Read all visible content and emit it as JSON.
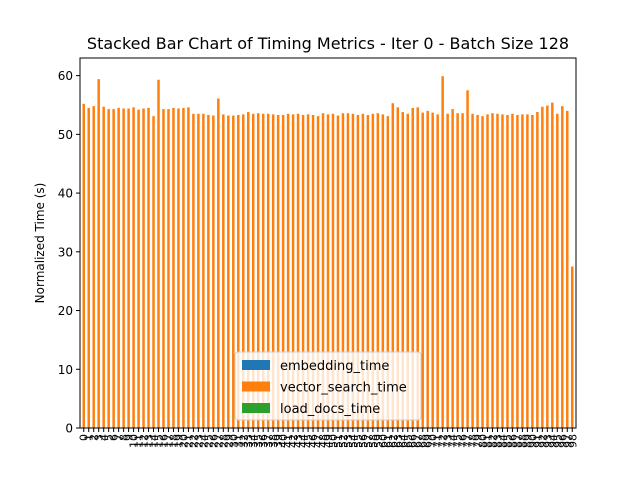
{
  "chart_data": {
    "type": "bar",
    "stacked": true,
    "title": "Stacked Bar Chart of Timing Metrics - Iter 0 - Batch Size 128",
    "xlabel": "",
    "ylabel": "Normalized Time (s)",
    "ylim": [
      0,
      63
    ],
    "yticks": [
      0,
      10,
      20,
      30,
      40,
      50,
      60
    ],
    "grid": false,
    "legend_position": "lower center",
    "categories": [
      "0",
      "1",
      "2",
      "3",
      "4",
      "5",
      "6",
      "7",
      "8",
      "9",
      "10",
      "11",
      "12",
      "13",
      "14",
      "15",
      "16",
      "17",
      "18",
      "19",
      "20",
      "21",
      "22",
      "23",
      "24",
      "25",
      "26",
      "27",
      "28",
      "29",
      "30",
      "31",
      "32",
      "33",
      "34",
      "35",
      "36",
      "37",
      "38",
      "39",
      "40",
      "41",
      "42",
      "43",
      "44",
      "45",
      "46",
      "47",
      "48",
      "49",
      "50",
      "51",
      "52",
      "53",
      "54",
      "55",
      "56",
      "57",
      "58",
      "59",
      "60",
      "61",
      "62",
      "63",
      "64",
      "65",
      "66",
      "67",
      "68",
      "69",
      "70",
      "71",
      "72",
      "73",
      "74",
      "75",
      "76",
      "77",
      "78",
      "79",
      "80",
      "81",
      "82",
      "83",
      "84",
      "85",
      "86",
      "87",
      "88",
      "89",
      "90",
      "91",
      "92",
      "93",
      "94",
      "95",
      "96",
      "97",
      "98"
    ],
    "series": [
      {
        "name": "embedding_time",
        "color": "#1f77b4",
        "values": [
          0,
          0,
          0,
          0,
          0,
          0,
          0,
          0,
          0,
          0,
          0,
          0,
          0,
          0,
          0,
          0,
          0,
          0,
          0,
          0,
          0,
          0,
          0,
          0,
          0,
          0,
          0,
          0,
          0,
          0,
          0,
          0,
          0,
          0,
          0,
          0,
          0,
          0,
          0,
          0,
          0,
          0,
          0,
          0,
          0,
          0,
          0,
          0,
          0,
          0,
          0,
          0,
          0,
          0,
          0,
          0,
          0,
          0,
          0,
          0,
          0,
          0,
          0,
          0,
          0,
          0,
          0,
          0,
          0,
          0,
          0,
          0,
          0,
          0,
          0,
          0,
          0,
          0,
          0,
          0,
          0,
          0,
          0,
          0,
          0,
          0,
          0,
          0,
          0,
          0,
          0,
          0,
          0,
          0,
          0,
          0,
          0,
          0,
          0
        ]
      },
      {
        "name": "vector_search_time",
        "color": "#ff7f0e",
        "values": [
          55.2,
          54.5,
          54.8,
          59.4,
          54.7,
          54.3,
          54.3,
          54.5,
          54.4,
          54.4,
          54.6,
          54.2,
          54.4,
          54.5,
          53.1,
          59.3,
          54.3,
          54.3,
          54.5,
          54.4,
          54.5,
          54.6,
          53.5,
          53.5,
          53.5,
          53.3,
          53.2,
          56.1,
          53.4,
          53.2,
          53.2,
          53.3,
          53.4,
          53.8,
          53.5,
          53.6,
          53.5,
          53.5,
          53.4,
          53.3,
          53.3,
          53.5,
          53.4,
          53.5,
          53.3,
          53.4,
          53.3,
          53.1,
          53.6,
          53.4,
          53.5,
          53.2,
          53.6,
          53.6,
          53.5,
          53.3,
          53.5,
          53.3,
          53.5,
          53.6,
          53.4,
          53.1,
          55.3,
          54.6,
          53.8,
          53.5,
          54.5,
          54.6,
          53.7,
          54.0,
          53.7,
          53.4,
          59.9,
          53.5,
          54.3,
          53.6,
          53.6,
          57.5,
          53.5,
          53.3,
          53.1,
          53.4,
          53.6,
          53.5,
          53.4,
          53.3,
          53.5,
          53.3,
          53.4,
          53.4,
          53.3,
          53.8,
          54.7,
          54.9,
          55.4,
          53.5,
          54.8,
          54.0,
          27.5
        ]
      },
      {
        "name": "load_docs_time",
        "color": "#2ca02c",
        "values": [
          0,
          0,
          0,
          0,
          0,
          0,
          0,
          0,
          0,
          0,
          0,
          0,
          0,
          0,
          0,
          0,
          0,
          0,
          0,
          0,
          0,
          0,
          0,
          0,
          0,
          0,
          0,
          0,
          0,
          0,
          0,
          0,
          0,
          0,
          0,
          0,
          0,
          0,
          0,
          0,
          0,
          0,
          0,
          0,
          0,
          0,
          0,
          0,
          0,
          0,
          0,
          0,
          0,
          0,
          0,
          0,
          0,
          0,
          0,
          0,
          0,
          0,
          0,
          0,
          0,
          0,
          0,
          0,
          0,
          0,
          0,
          0,
          0,
          0,
          0,
          0,
          0,
          0,
          0,
          0,
          0,
          0,
          0,
          0,
          0,
          0,
          0,
          0,
          0,
          0,
          0,
          0,
          0,
          0,
          0,
          0,
          0,
          0,
          0
        ]
      }
    ]
  }
}
